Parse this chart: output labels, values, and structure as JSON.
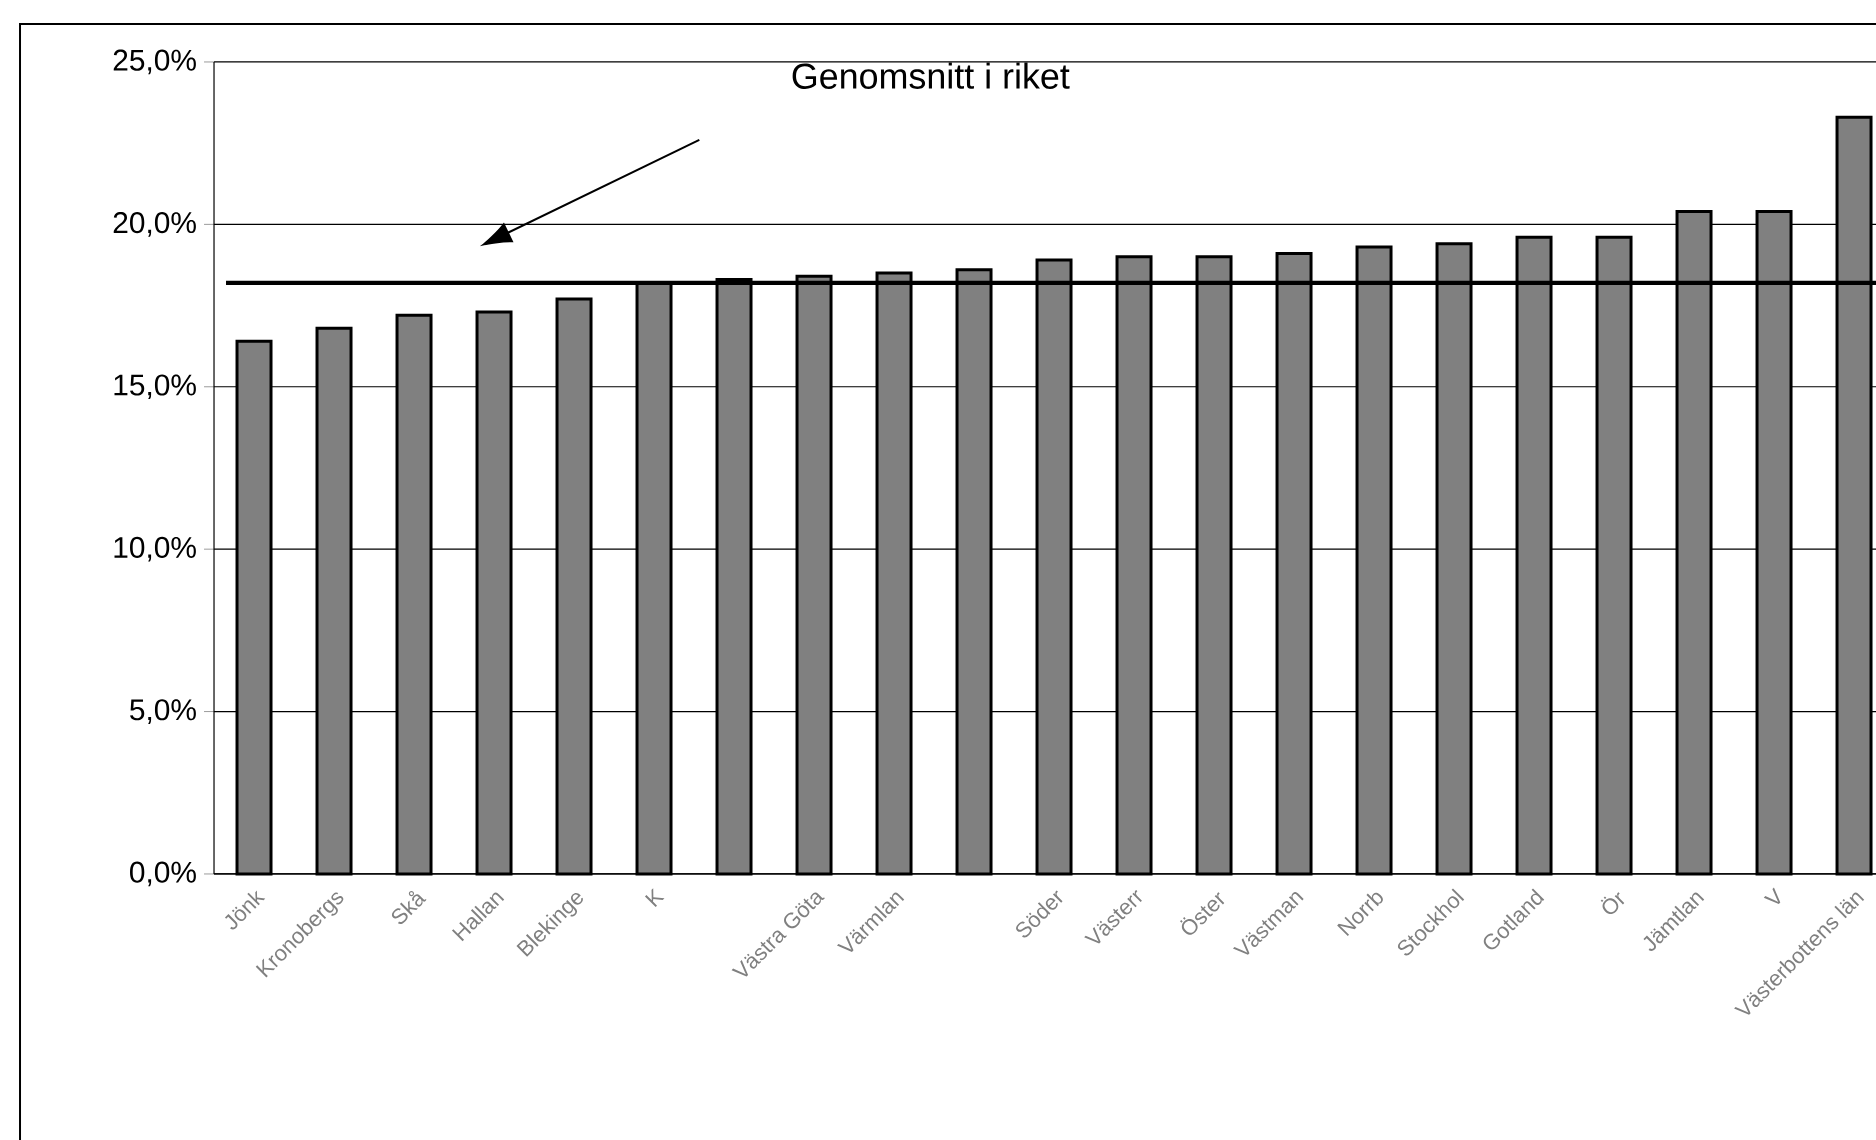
{
  "chart_data": {
    "type": "bar",
    "categories": [
      "Jönk",
      "Kronobergs",
      "Skå",
      "Hallan",
      "Blekinge",
      "K",
      null,
      "Västra Göta",
      "Värmlan",
      null,
      "Söder",
      "Västerr",
      "Öster",
      "Västman",
      "Norrb",
      "Stockhol",
      "Gotland",
      "Ör",
      "Jämtlan",
      "V",
      "Västerbottens län"
    ],
    "values": [
      16.4,
      16.8,
      17.2,
      17.3,
      17.7,
      18.2,
      18.3,
      18.4,
      18.5,
      18.6,
      18.9,
      19.0,
      19.0,
      19.1,
      19.3,
      19.4,
      19.6,
      19.6,
      20.4,
      20.4,
      23.3
    ],
    "color": "#808080",
    "ylim": [
      0,
      25
    ],
    "yticks": [
      {
        "value": 0,
        "label": "0,0%"
      },
      {
        "value": 5,
        "label": "5,0%"
      },
      {
        "value": 10,
        "label": "10,0%"
      },
      {
        "value": 15,
        "label": "15,0%"
      },
      {
        "value": 20,
        "label": "20,0%"
      },
      {
        "value": 25,
        "label": "25,0%"
      }
    ],
    "grid": "y",
    "ref_lines": [
      {
        "axis": "y",
        "value": 18.2,
        "label": "Genomsnitt i riket",
        "color": "#000000"
      }
    ]
  }
}
